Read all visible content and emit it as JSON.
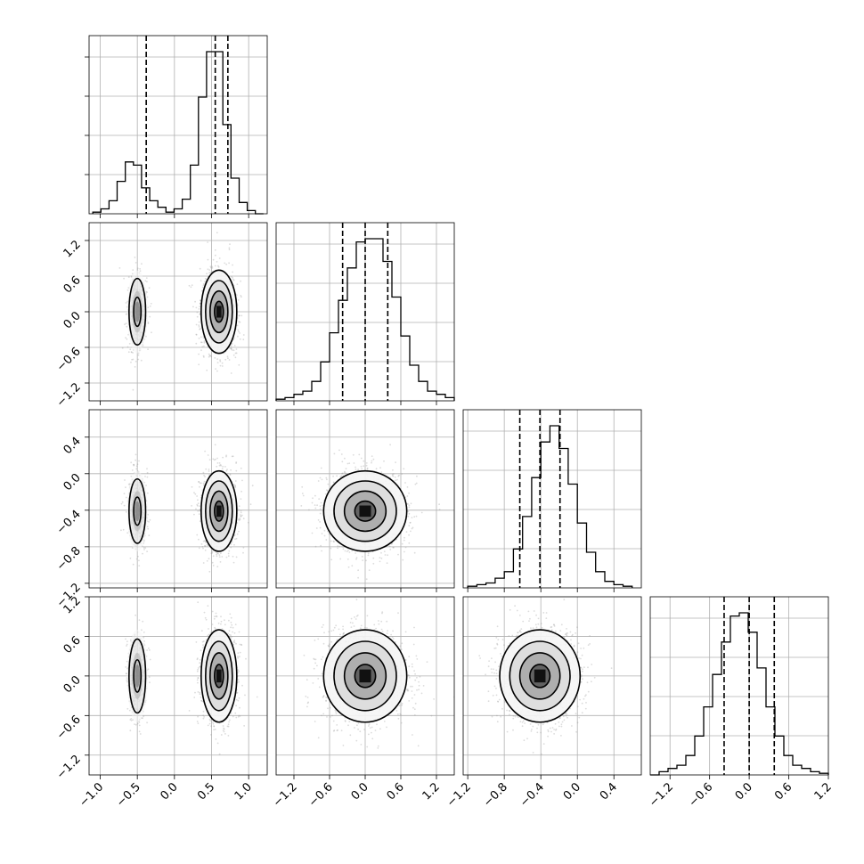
{
  "chart_data": {
    "type": "corner",
    "grid": true,
    "dim": 4,
    "params": [
      {
        "range": [
          -1.15,
          1.25
        ],
        "ticks": [
          -1.0,
          -0.5,
          0.0,
          0.5,
          1.0
        ],
        "tick_labels": [
          "−1.0",
          "−0.5",
          "0.0",
          "0.5",
          "1.0"
        ],
        "quantiles": [
          -0.38,
          0.55,
          0.72
        ],
        "hist_edges_range": [
          -1.1,
          1.2
        ],
        "hist_counts": [
          1,
          3,
          8,
          20,
          32,
          30,
          16,
          8,
          4,
          1,
          3,
          9,
          30,
          72,
          100,
          100,
          55,
          22,
          7,
          2,
          0
        ],
        "modes": [
          {
            "mean": -0.5,
            "sd_x": 0.07
          },
          {
            "mean": 0.6,
            "sd_x": 0.12
          }
        ]
      },
      {
        "range": [
          -1.5,
          1.5
        ],
        "ticks": [
          -1.2,
          -0.6,
          0.0,
          0.6,
          1.2
        ],
        "tick_labels": [
          "−1.2",
          "−0.6",
          "0.0",
          "0.6",
          "1.2"
        ],
        "quantiles": [
          -0.38,
          0.0,
          0.38
        ],
        "hist_edges_range": [
          -1.5,
          1.5
        ],
        "hist_counts": [
          1,
          2,
          4,
          6,
          12,
          24,
          42,
          62,
          82,
          98,
          100,
          100,
          86,
          64,
          40,
          22,
          12,
          6,
          4,
          2
        ],
        "sd": 0.35
      },
      {
        "range": [
          -1.25,
          0.7
        ],
        "ticks": [
          -1.2,
          -0.8,
          -0.4,
          0.0,
          0.4
        ],
        "tick_labels": [
          "−1.2",
          "−0.8",
          "−0.4",
          "0.0",
          "0.4"
        ],
        "quantiles": [
          -0.63,
          -0.41,
          -0.19
        ],
        "hist_edges_range": [
          -1.2,
          0.6
        ],
        "hist_counts": [
          1,
          2,
          3,
          6,
          10,
          24,
          44,
          68,
          90,
          100,
          86,
          64,
          40,
          22,
          10,
          4,
          2,
          1
        ],
        "sd": 0.22
      },
      {
        "range": [
          -1.5,
          1.2
        ],
        "ticks": [
          -1.2,
          -0.6,
          0.0,
          0.6,
          1.2
        ],
        "tick_labels": [
          "−1.2",
          "−0.6",
          "0.0",
          "0.6",
          "1.2"
        ],
        "quantiles": [
          -0.38,
          0.0,
          0.38
        ],
        "hist_edges_range": [
          -1.5,
          1.2
        ],
        "hist_counts": [
          0,
          2,
          4,
          6,
          12,
          24,
          42,
          62,
          82,
          98,
          100,
          88,
          66,
          42,
          24,
          12,
          6,
          4,
          2,
          1
        ],
        "sd": 0.35
      }
    ]
  }
}
